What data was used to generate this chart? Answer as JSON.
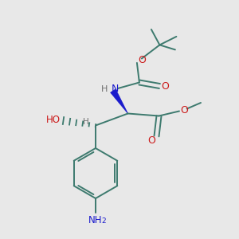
{
  "bg_color": "#e8e8e8",
  "bond_color": "#3d7a6e",
  "N_color": "#1a1acc",
  "O_color": "#cc1a1a",
  "H_color": "#707070",
  "line_width": 1.4,
  "fig_size": [
    3.0,
    3.0
  ],
  "dpi": 100,
  "xlim": [
    0,
    10
  ],
  "ylim": [
    0,
    10
  ]
}
